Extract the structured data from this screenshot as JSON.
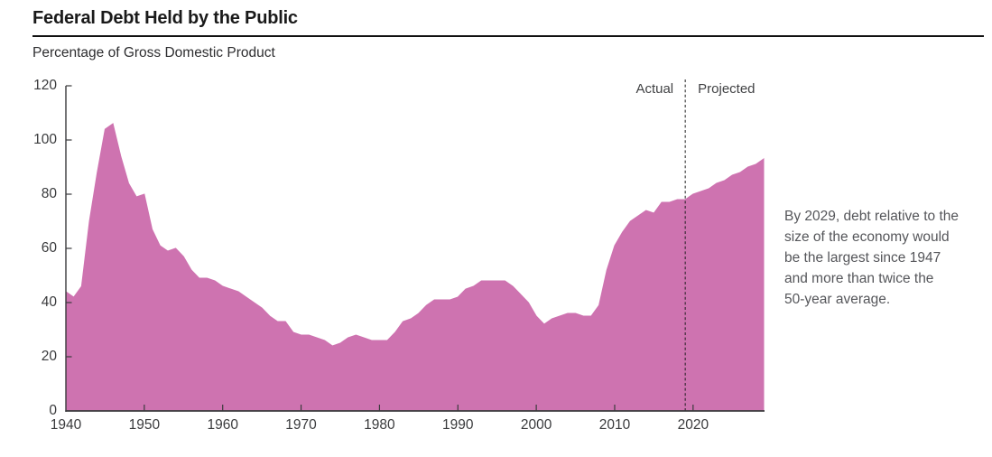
{
  "chart_data": {
    "type": "area",
    "title": "Federal Debt Held by the Public",
    "subtitle": "Percentage of Gross Domestic Product",
    "x_start": 1940,
    "x_end": 2029,
    "ylim": [
      0,
      120
    ],
    "y_ticks": [
      0,
      20,
      40,
      60,
      80,
      100,
      120
    ],
    "x_ticks": [
      1940,
      1950,
      1960,
      1970,
      1980,
      1990,
      2000,
      2010,
      2020
    ],
    "grid": false,
    "legend": "none",
    "area_color": "#ce73b0",
    "axis_color": "#3a3a3c",
    "divider": {
      "year": 2019,
      "left_label": "Actual",
      "right_label": "Projected"
    },
    "series": [
      {
        "name": "Federal debt held by the public (percentage of GDP)",
        "x_step": 1,
        "values": [
          44,
          42,
          46,
          70,
          88,
          104,
          106,
          94,
          84,
          79,
          80,
          67,
          61,
          59,
          60,
          57,
          52,
          49,
          49,
          48,
          46,
          45,
          44,
          42,
          40,
          38,
          35,
          33,
          33,
          29,
          28,
          28,
          27,
          26,
          24,
          25,
          27,
          28,
          27,
          26,
          26,
          26,
          29,
          33,
          34,
          36,
          39,
          41,
          41,
          41,
          42,
          45,
          46,
          48,
          48,
          48,
          48,
          46,
          43,
          40,
          35,
          32,
          34,
          35,
          36,
          36,
          35,
          35,
          39,
          52,
          61,
          66,
          70,
          72,
          74,
          73,
          77,
          77,
          78,
          78,
          80,
          81,
          82,
          84,
          85,
          87,
          88,
          90,
          91,
          93
        ]
      }
    ]
  },
  "annotation": {
    "lines": [
      "By 2029, debt relative to the",
      "size of the economy would",
      "be the largest since 1947",
      "and more than twice the",
      "50-year average."
    ]
  }
}
